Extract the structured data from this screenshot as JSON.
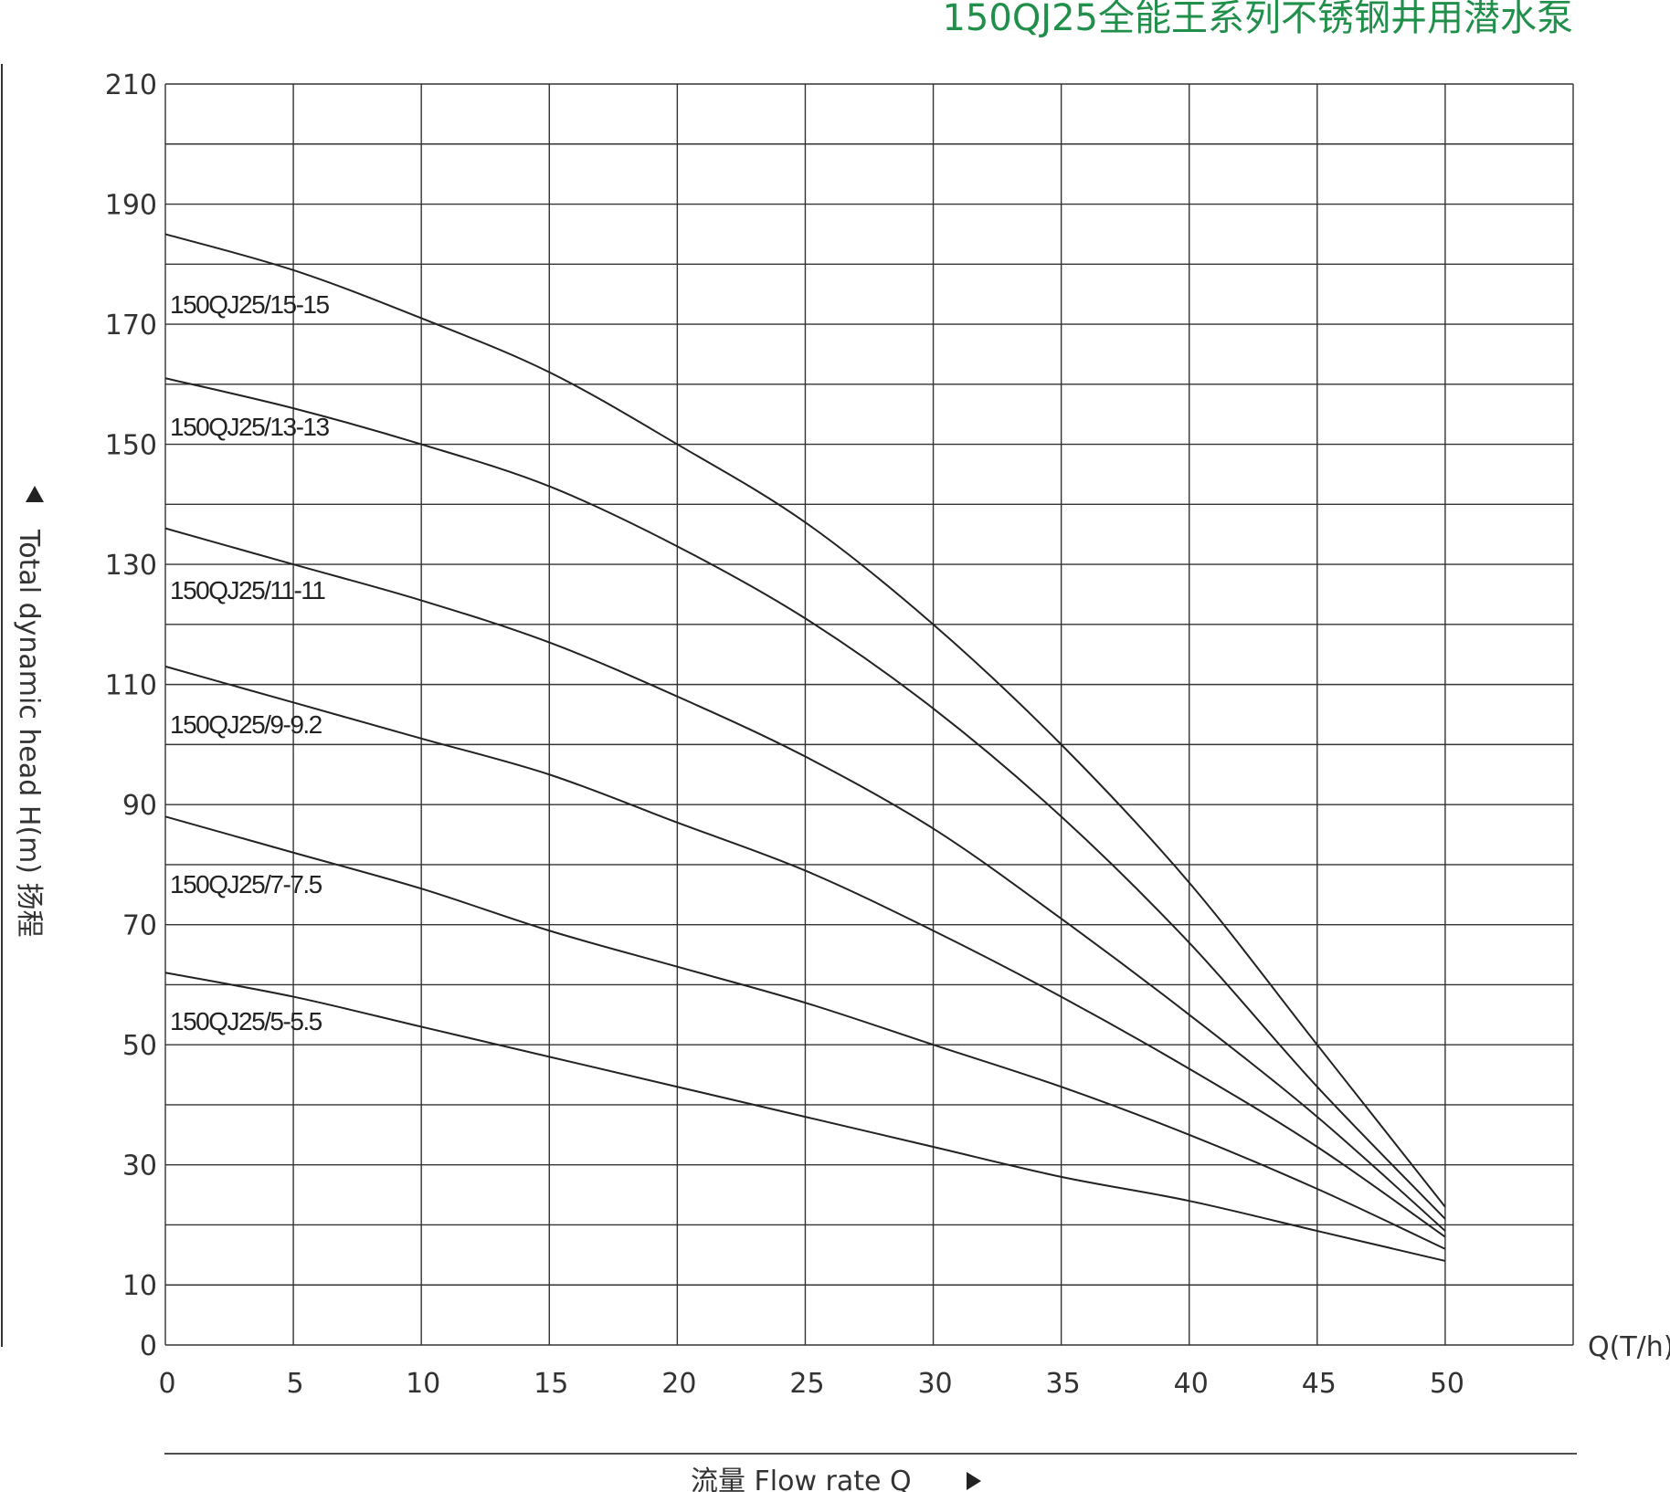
{
  "chart_data": {
    "type": "line",
    "title": "150QJ25全能王系列不锈钢井用潜水泵",
    "xlabel": "流量 Flow rate Q",
    "x_unit_label": "Q(T/h)",
    "ylabel": "Total dynamic head H(m) 扬程",
    "xlim": [
      0,
      55
    ],
    "ylim": [
      0,
      210
    ],
    "x_ticks": [
      0,
      5,
      10,
      15,
      20,
      25,
      30,
      35,
      40,
      45,
      50
    ],
    "y_ticks": [
      0,
      10,
      30,
      50,
      70,
      90,
      110,
      130,
      150,
      170,
      190,
      210
    ],
    "grid": true,
    "series": [
      {
        "name": "150QJ25/15-15",
        "x": [
          0,
          5,
          10,
          15,
          20,
          25,
          30,
          35,
          40,
          45,
          50
        ],
        "y": [
          185,
          179,
          171,
          162,
          150,
          137,
          120,
          100,
          77,
          50,
          23
        ]
      },
      {
        "name": "150QJ25/13-13",
        "x": [
          0,
          5,
          10,
          15,
          20,
          25,
          30,
          35,
          40,
          45,
          50
        ],
        "y": [
          161,
          156,
          150,
          143,
          133,
          121,
          106,
          88,
          67,
          43,
          21
        ]
      },
      {
        "name": "150QJ25/11-11",
        "x": [
          0,
          5,
          10,
          15,
          20,
          25,
          30,
          35,
          40,
          45,
          50
        ],
        "y": [
          136,
          130,
          124,
          117,
          108,
          98,
          86,
          71,
          55,
          38,
          19
        ]
      },
      {
        "name": "150QJ25/9-9.2",
        "x": [
          0,
          5,
          10,
          15,
          20,
          25,
          30,
          35,
          40,
          45,
          50
        ],
        "y": [
          113,
          107,
          101,
          95,
          87,
          79,
          69,
          58,
          46,
          33,
          18
        ]
      },
      {
        "name": "150QJ25/7-7.5",
        "x": [
          0,
          5,
          10,
          15,
          20,
          25,
          30,
          35,
          40,
          45,
          50
        ],
        "y": [
          88,
          82,
          76,
          69,
          63,
          57,
          50,
          43,
          35,
          26,
          16
        ]
      },
      {
        "name": "150QJ25/5-5.5",
        "x": [
          0,
          5,
          10,
          15,
          20,
          25,
          30,
          35,
          40,
          45,
          50
        ],
        "y": [
          62,
          58,
          53,
          48,
          43,
          38,
          33,
          28,
          24,
          19,
          14
        ]
      }
    ]
  }
}
